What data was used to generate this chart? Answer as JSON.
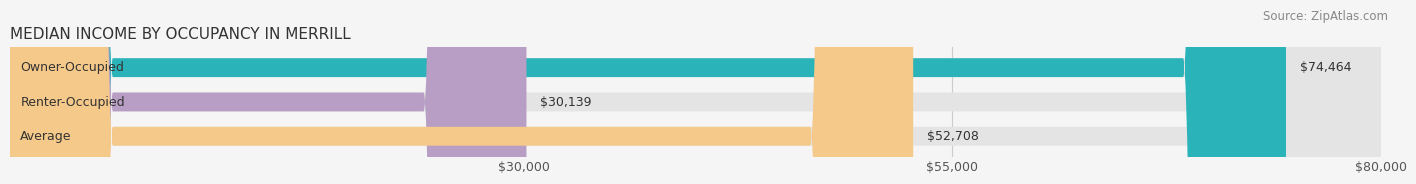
{
  "title": "MEDIAN INCOME BY OCCUPANCY IN MERRILL",
  "source": "Source: ZipAtlas.com",
  "categories": [
    "Owner-Occupied",
    "Renter-Occupied",
    "Average"
  ],
  "values": [
    74464,
    30139,
    52708
  ],
  "labels": [
    "$74,464",
    "$30,139",
    "$52,708"
  ],
  "bar_colors": [
    "#2ab3b8",
    "#b89ec4",
    "#f5c98a"
  ],
  "background_color": "#f5f5f5",
  "bar_bg_color": "#e4e4e4",
  "xmin": 0,
  "xmax": 80000,
  "xticks": [
    30000,
    55000,
    80000
  ],
  "xtick_labels": [
    "$30,000",
    "$55,000",
    "$80,000"
  ],
  "bar_height": 0.55,
  "title_fontsize": 11,
  "label_fontsize": 9,
  "source_fontsize": 8.5,
  "tick_fontsize": 9
}
